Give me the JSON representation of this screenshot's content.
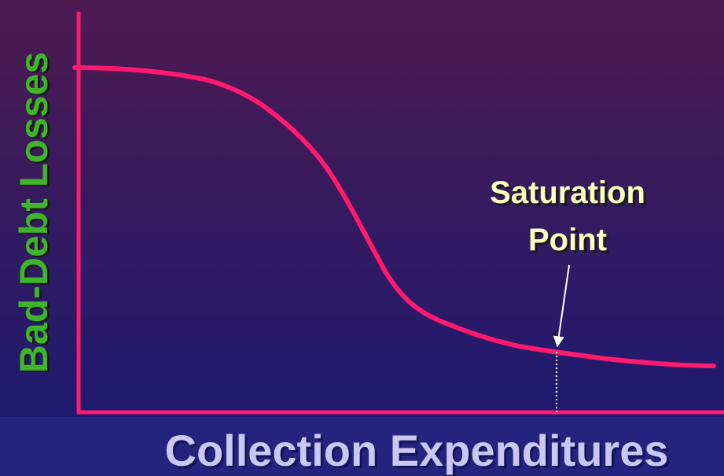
{
  "axes": {
    "x_label": "Collection Expenditures",
    "y_label": "Bad-Debt Losses"
  },
  "annotation": {
    "lines": [
      "Saturation",
      "Point"
    ]
  }
}
